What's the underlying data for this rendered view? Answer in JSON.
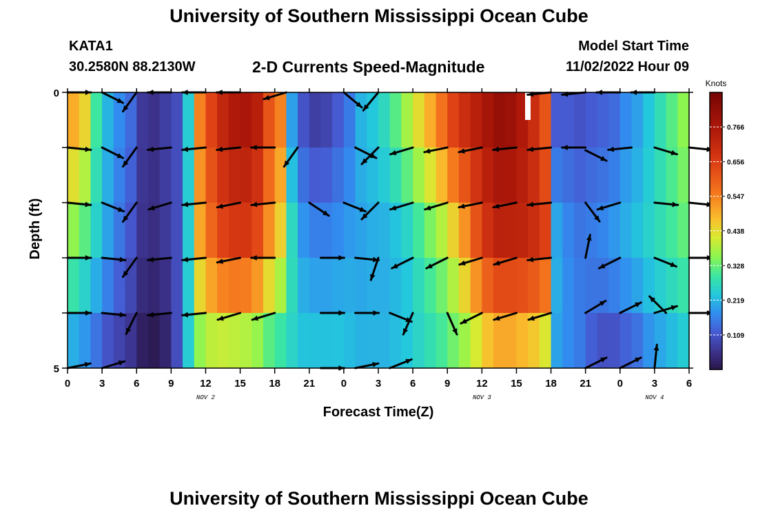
{
  "header": {
    "title": "University of Southern Mississippi Ocean Cube",
    "station": "KATA1",
    "coords": "30.2580N  88.2130W",
    "subtitle": "2-D Currents Speed-Magnitude",
    "model_label": "Model Start Time",
    "model_time": "11/02/2022 Hour 09"
  },
  "footer": {
    "title": "University of Southern Mississippi Ocean Cube"
  },
  "chart_data": {
    "type": "heatmap",
    "title": "2-D Currents Speed-Magnitude",
    "xlabel": "Forecast Time(Z)",
    "ylabel": "Depth (ft)",
    "x_ticks": [
      "0",
      "3",
      "6",
      "9",
      "12",
      "15",
      "18",
      "21",
      "0",
      "3",
      "6",
      "9",
      "12",
      "15",
      "18",
      "21",
      "0",
      "3",
      "6"
    ],
    "day_labels": [
      {
        "label": "NOV 2",
        "tick_index": 12
      },
      {
        "label": "NOV 3",
        "tick_index": 36
      },
      {
        "label": "NOV 4",
        "tick_index": 51
      }
    ],
    "y_ticks": [
      "0",
      "5"
    ],
    "ylim": [
      0,
      5
    ],
    "colorbar": {
      "label": "Knots",
      "ticks": [
        "0.766",
        "0.656",
        "0.547",
        "0.438",
        "0.328",
        "0.219",
        "0.109"
      ],
      "tick_values": [
        0.766,
        0.656,
        0.547,
        0.438,
        0.328,
        0.219,
        0.109
      ],
      "range": [
        0.0,
        0.875
      ]
    },
    "hours": [
      0,
      1,
      2,
      3,
      4,
      5,
      6,
      7,
      8,
      9,
      10,
      11,
      12,
      13,
      14,
      15,
      16,
      17,
      18,
      19,
      20,
      21,
      22,
      23,
      24,
      25,
      26,
      27,
      28,
      29,
      30,
      31,
      32,
      33,
      34,
      35,
      36,
      37,
      38,
      39,
      40,
      41,
      42,
      43,
      44,
      45,
      46,
      47,
      48,
      49,
      50,
      51,
      52,
      53,
      54
    ],
    "depth_bands": [
      0,
      1,
      2,
      3,
      4,
      5
    ],
    "profile_surface": [
      0.5,
      0.45,
      0.3,
      0.22,
      0.18,
      0.14,
      0.07,
      0.06,
      0.08,
      0.1,
      0.25,
      0.55,
      0.65,
      0.72,
      0.76,
      0.77,
      0.74,
      0.62,
      0.55,
      0.2,
      0.11,
      0.08,
      0.09,
      0.12,
      0.16,
      0.22,
      0.24,
      0.27,
      0.32,
      0.38,
      0.44,
      0.5,
      0.57,
      0.65,
      0.7,
      0.74,
      0.78,
      0.81,
      0.8,
      0.76,
      0.7,
      0.62,
      0.12,
      0.12,
      0.11,
      0.12,
      0.13,
      0.14,
      0.18,
      0.2,
      0.24,
      0.28,
      0.32,
      0.36,
      0.38
    ],
    "profile_mid": [
      0.34,
      0.3,
      0.25,
      0.2,
      0.15,
      0.11,
      0.06,
      0.05,
      0.07,
      0.1,
      0.25,
      0.5,
      0.58,
      0.64,
      0.66,
      0.66,
      0.62,
      0.52,
      0.44,
      0.28,
      0.2,
      0.18,
      0.18,
      0.19,
      0.2,
      0.2,
      0.21,
      0.21,
      0.22,
      0.24,
      0.28,
      0.32,
      0.36,
      0.42,
      0.5,
      0.6,
      0.68,
      0.72,
      0.72,
      0.72,
      0.7,
      0.66,
      0.22,
      0.18,
      0.16,
      0.17,
      0.18,
      0.2,
      0.22,
      0.24,
      0.26,
      0.28,
      0.3,
      0.32,
      0.34
    ],
    "profile_bottom": [
      0.2,
      0.18,
      0.14,
      0.1,
      0.08,
      0.06,
      0.02,
      0.01,
      0.03,
      0.1,
      0.25,
      0.35,
      0.38,
      0.38,
      0.37,
      0.36,
      0.34,
      0.3,
      0.28,
      0.26,
      0.24,
      0.24,
      0.24,
      0.24,
      0.23,
      0.22,
      0.22,
      0.22,
      0.23,
      0.24,
      0.26,
      0.28,
      0.3,
      0.33,
      0.36,
      0.4,
      0.45,
      0.48,
      0.48,
      0.46,
      0.44,
      0.4,
      0.2,
      0.18,
      0.16,
      0.12,
      0.1,
      0.1,
      0.12,
      0.14,
      0.18,
      0.2,
      0.22,
      0.24,
      0.26
    ],
    "vectors": [
      {
        "x": 0,
        "d": 0,
        "u": 1,
        "v": 0.0
      },
      {
        "x": 3,
        "d": 0,
        "u": 1,
        "v": 0.5
      },
      {
        "x": 6,
        "d": 0,
        "u": -0.5,
        "v": 0.7
      },
      {
        "x": 9,
        "d": 0,
        "u": -1,
        "v": 0.0
      },
      {
        "x": 12,
        "d": 0,
        "u": -1,
        "v": 0.0
      },
      {
        "x": 15,
        "d": 0,
        "u": -1,
        "v": 0.0
      },
      {
        "x": 19,
        "d": 0,
        "u": -1,
        "v": 0.3
      },
      {
        "x": 24,
        "d": 0,
        "u": 0.6,
        "v": 0.5
      },
      {
        "x": 27,
        "d": 0,
        "u": -0.5,
        "v": 0.6
      },
      {
        "x": 42,
        "d": 0,
        "u": -1,
        "v": 0.1
      },
      {
        "x": 45,
        "d": 0,
        "u": -1,
        "v": 0.1
      },
      {
        "x": 48,
        "d": 0,
        "u": -1,
        "v": 0.0
      },
      {
        "x": 51,
        "d": 0,
        "u": -1,
        "v": 0.0
      },
      {
        "x": 0,
        "d": 1,
        "u": 1,
        "v": 0.1
      },
      {
        "x": 3,
        "d": 1,
        "u": 1,
        "v": 0.5
      },
      {
        "x": 6,
        "d": 1,
        "u": -0.5,
        "v": 0.7
      },
      {
        "x": 9,
        "d": 1,
        "u": -1,
        "v": 0.1
      },
      {
        "x": 12,
        "d": 1,
        "u": -1,
        "v": 0.1
      },
      {
        "x": 15,
        "d": 1,
        "u": -1,
        "v": 0.1
      },
      {
        "x": 18,
        "d": 1,
        "u": -1,
        "v": 0.0
      },
      {
        "x": 20,
        "d": 1,
        "u": -0.5,
        "v": 0.7
      },
      {
        "x": 25,
        "d": 1,
        "u": 1,
        "v": 0.5
      },
      {
        "x": 27,
        "d": 1,
        "u": -0.6,
        "v": 0.6
      },
      {
        "x": 30,
        "d": 1,
        "u": -1,
        "v": 0.3
      },
      {
        "x": 33,
        "d": 1,
        "u": -1,
        "v": 0.2
      },
      {
        "x": 36,
        "d": 1,
        "u": -1,
        "v": 0.2
      },
      {
        "x": 39,
        "d": 1,
        "u": -1,
        "v": 0.1
      },
      {
        "x": 42,
        "d": 1,
        "u": -1,
        "v": 0.1
      },
      {
        "x": 45,
        "d": 1,
        "u": -1,
        "v": 0.0
      },
      {
        "x": 45,
        "d": 1.05,
        "u": 1,
        "v": 0.5
      },
      {
        "x": 49,
        "d": 1,
        "u": -1,
        "v": 0.1
      },
      {
        "x": 51,
        "d": 1,
        "u": 1,
        "v": 0.3
      },
      {
        "x": 54,
        "d": 1,
        "u": 1,
        "v": 0.1
      },
      {
        "x": 0,
        "d": 2,
        "u": 1,
        "v": 0.1
      },
      {
        "x": 3,
        "d": 2,
        "u": 1,
        "v": 0.4
      },
      {
        "x": 6,
        "d": 2,
        "u": -0.5,
        "v": 0.7
      },
      {
        "x": 9,
        "d": 2,
        "u": -1,
        "v": 0.3
      },
      {
        "x": 12,
        "d": 2,
        "u": -1,
        "v": 0.1
      },
      {
        "x": 15,
        "d": 2,
        "u": -1,
        "v": 0.2
      },
      {
        "x": 18,
        "d": 2,
        "u": -1,
        "v": 0.1
      },
      {
        "x": 21,
        "d": 2,
        "u": 0.9,
        "v": 0.6
      },
      {
        "x": 24,
        "d": 2,
        "u": 1,
        "v": 0.4
      },
      {
        "x": 27,
        "d": 2,
        "u": -0.6,
        "v": 0.6
      },
      {
        "x": 30,
        "d": 2,
        "u": -1,
        "v": 0.3
      },
      {
        "x": 33,
        "d": 2,
        "u": -1,
        "v": 0.3
      },
      {
        "x": 36,
        "d": 2,
        "u": -1,
        "v": 0.2
      },
      {
        "x": 39,
        "d": 2,
        "u": -1,
        "v": 0.2
      },
      {
        "x": 42,
        "d": 2,
        "u": -1,
        "v": 0.1
      },
      {
        "x": 45,
        "d": 2,
        "u": 0.6,
        "v": 0.8
      },
      {
        "x": 48,
        "d": 2,
        "u": -1,
        "v": 0.3
      },
      {
        "x": 51,
        "d": 2,
        "u": 1,
        "v": 0.1
      },
      {
        "x": 54,
        "d": 2,
        "u": 1,
        "v": 0.1
      },
      {
        "x": 0,
        "d": 3,
        "u": 1,
        "v": 0.0
      },
      {
        "x": 3,
        "d": 3,
        "u": 1,
        "v": 0.1
      },
      {
        "x": 6,
        "d": 3,
        "u": -0.5,
        "v": 0.7
      },
      {
        "x": 9,
        "d": 3,
        "u": -1,
        "v": 0.1
      },
      {
        "x": 12,
        "d": 3,
        "u": -1,
        "v": 0.1
      },
      {
        "x": 15,
        "d": 3,
        "u": -1,
        "v": 0.2
      },
      {
        "x": 18,
        "d": 3,
        "u": -1,
        "v": 0.0
      },
      {
        "x": 22,
        "d": 3,
        "u": 1,
        "v": 0.0
      },
      {
        "x": 25,
        "d": 3,
        "u": 1,
        "v": 0.1
      },
      {
        "x": 27,
        "d": 3,
        "u": -0.3,
        "v": 0.9
      },
      {
        "x": 30,
        "d": 3,
        "u": -1,
        "v": 0.5
      },
      {
        "x": 33,
        "d": 3,
        "u": -1,
        "v": 0.5
      },
      {
        "x": 36,
        "d": 3,
        "u": -1,
        "v": 0.3
      },
      {
        "x": 39,
        "d": 3,
        "u": -1,
        "v": 0.3
      },
      {
        "x": 42,
        "d": 3,
        "u": -1,
        "v": 0.1
      },
      {
        "x": 45,
        "d": 3,
        "u": 0.2,
        "v": -1
      },
      {
        "x": 48,
        "d": 3,
        "u": -1,
        "v": 0.5
      },
      {
        "x": 51,
        "d": 3,
        "u": 1,
        "v": 0.4
      },
      {
        "x": 54,
        "d": 3,
        "u": 1,
        "v": 0.0
      },
      {
        "x": 0,
        "d": 4,
        "u": 1,
        "v": 0.0
      },
      {
        "x": 3,
        "d": 4,
        "u": 1,
        "v": 0.1
      },
      {
        "x": 6,
        "d": 4,
        "u": -0.4,
        "v": 0.8
      },
      {
        "x": 9,
        "d": 4,
        "u": -1,
        "v": 0.1
      },
      {
        "x": 12,
        "d": 4,
        "u": -1,
        "v": 0.1
      },
      {
        "x": 15,
        "d": 4,
        "u": -1,
        "v": 0.3
      },
      {
        "x": 18,
        "d": 4,
        "u": -1,
        "v": 0.3
      },
      {
        "x": 22,
        "d": 4,
        "u": 1,
        "v": 0.0
      },
      {
        "x": 25,
        "d": 4,
        "u": 1,
        "v": 0.0
      },
      {
        "x": 28,
        "d": 4,
        "u": 1,
        "v": 0.4
      },
      {
        "x": 30,
        "d": 4,
        "u": -0.4,
        "v": 0.9
      },
      {
        "x": 33,
        "d": 4,
        "u": 0.4,
        "v": 0.9
      },
      {
        "x": 36,
        "d": 4,
        "u": -1,
        "v": 0.5
      },
      {
        "x": 39,
        "d": 4,
        "u": -1,
        "v": 0.3
      },
      {
        "x": 42,
        "d": 4,
        "u": -1,
        "v": 0.3
      },
      {
        "x": 45,
        "d": 4,
        "u": 1,
        "v": -0.6
      },
      {
        "x": 48,
        "d": 4,
        "u": 1,
        "v": -0.5
      },
      {
        "x": 51,
        "d": 4,
        "u": 1,
        "v": -0.3
      },
      {
        "x": 52,
        "d": 4,
        "u": -0.6,
        "v": -0.6
      },
      {
        "x": 54,
        "d": 4,
        "u": 1,
        "v": 0.0
      },
      {
        "x": 0,
        "d": 5,
        "u": 1,
        "v": -0.2
      },
      {
        "x": 3,
        "d": 5,
        "u": 1,
        "v": -0.3
      },
      {
        "x": 22,
        "d": 5,
        "u": 1,
        "v": 0.0
      },
      {
        "x": 25,
        "d": 5,
        "u": 1,
        "v": -0.2
      },
      {
        "x": 28,
        "d": 5,
        "u": 1,
        "v": -0.4
      },
      {
        "x": 45,
        "d": 5,
        "u": 1,
        "v": -0.5
      },
      {
        "x": 48,
        "d": 5,
        "u": 1,
        "v": -0.5
      },
      {
        "x": 51,
        "d": 5,
        "u": 0.1,
        "v": -1
      }
    ]
  }
}
